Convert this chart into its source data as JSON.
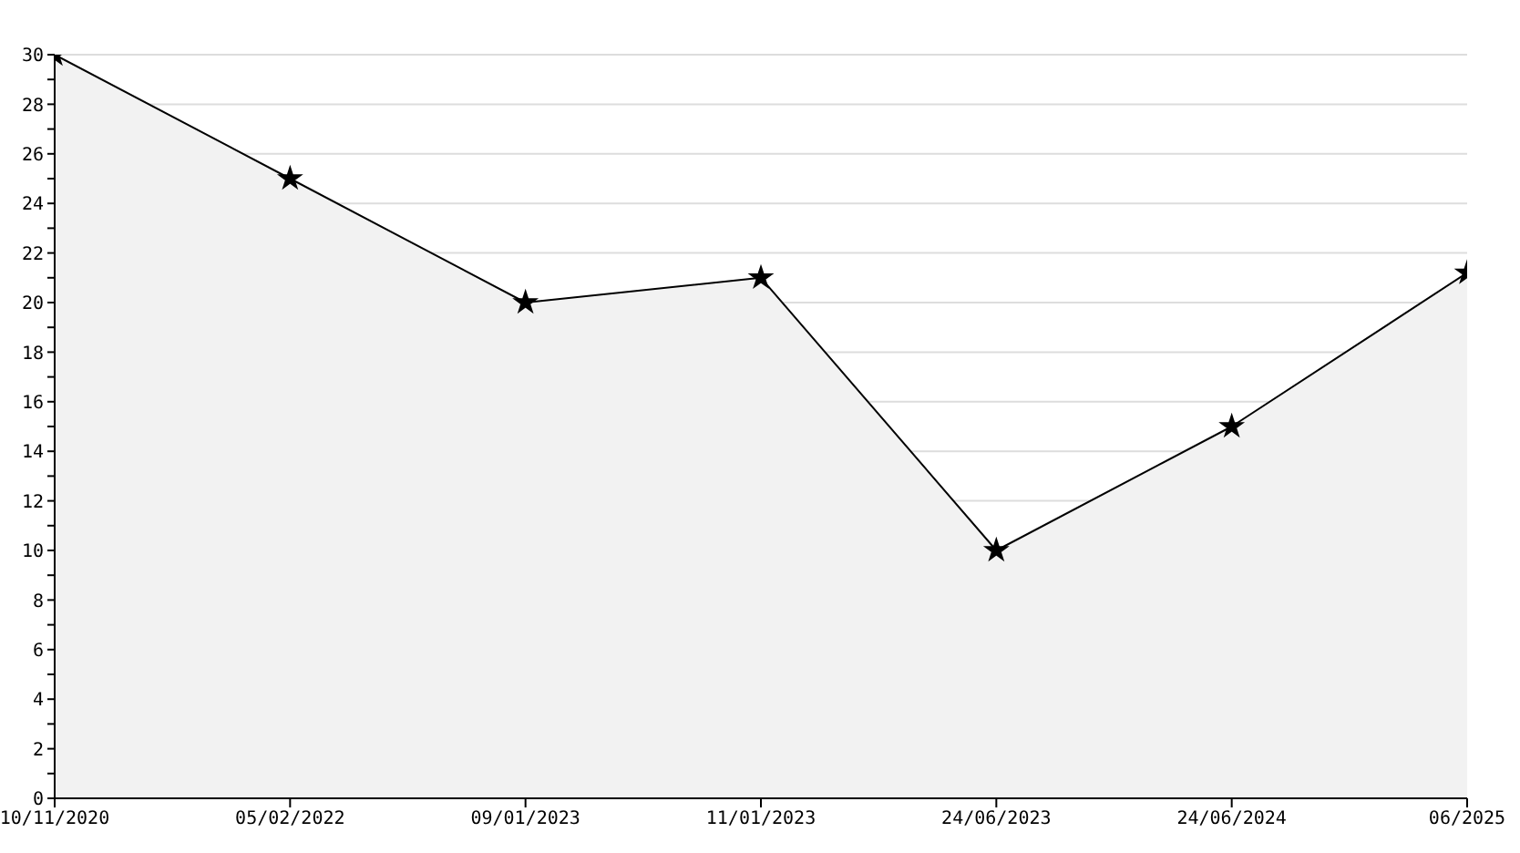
{
  "chart_data": {
    "type": "area",
    "categories": [
      "10/11/2020",
      "05/02/2022",
      "09/01/2023",
      "11/01/2023",
      "24/06/2023",
      "24/06/2024",
      "06/2025"
    ],
    "series": [
      {
        "color": "#f2f2f2",
        "values": [
          30,
          25,
          20,
          21,
          10,
          15,
          21.2
        ]
      }
    ],
    "ylim": [
      0,
      30
    ],
    "yticks": [
      0,
      {
        "value": 1,
        "label": null
      },
      2,
      {
        "value": 3,
        "label": null
      },
      4,
      {
        "value": 5,
        "label": null
      },
      6,
      {
        "value": 7,
        "label": null
      },
      8,
      {
        "value": 9,
        "label": null
      },
      10,
      {
        "value": 11,
        "label": null
      },
      12,
      {
        "value": 13,
        "label": null
      },
      14,
      {
        "value": 15,
        "label": null
      },
      16,
      {
        "value": 17,
        "label": null
      },
      18,
      {
        "value": 19,
        "label": null
      },
      20,
      {
        "value": 21,
        "label": null
      },
      22,
      {
        "value": 23,
        "label": null
      },
      24,
      {
        "value": 25,
        "label": null
      },
      26,
      {
        "value": 27,
        "label": null
      },
      28,
      {
        "value": 29,
        "label": null
      },
      30
    ],
    "grid": "y",
    "marker": "star",
    "line_style": "solid",
    "legend": false
  }
}
